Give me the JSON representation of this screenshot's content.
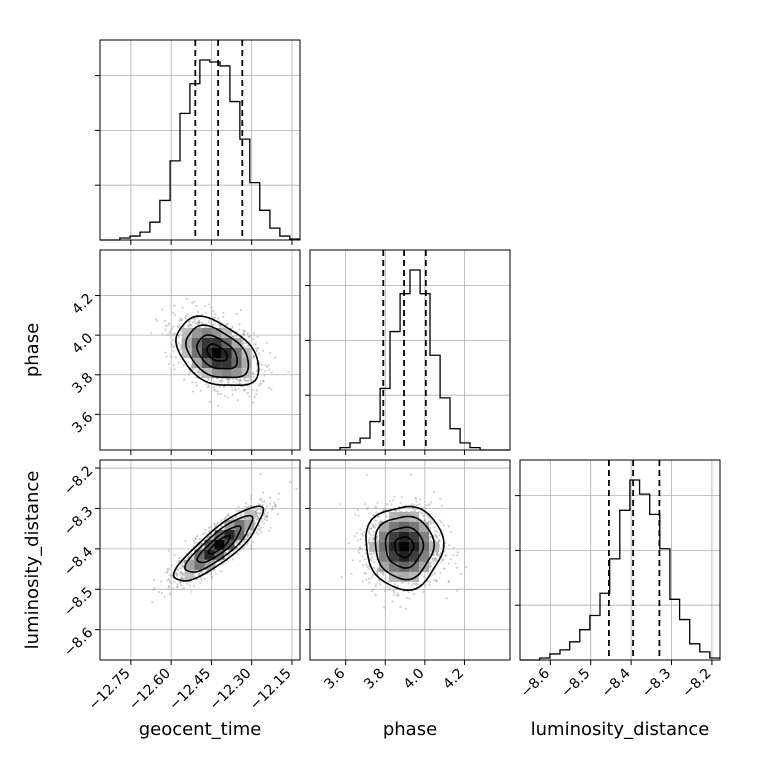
{
  "chart_data": {
    "type": "corner",
    "parameters": [
      "geocent_time",
      "phase",
      "luminosity_distance"
    ],
    "axis_labels": {
      "x": [
        "geocent_time",
        "phase",
        "luminosity_distance"
      ],
      "y": [
        "",
        "phase",
        "luminosity_distance"
      ]
    },
    "ranges": {
      "geocent_time": [
        -12.865,
        -12.12
      ],
      "phase": [
        3.42,
        4.43
      ],
      "luminosity_distance": [
        -8.675,
        -8.18
      ]
    },
    "ticks": {
      "geocent_time": {
        "values": [
          -12.75,
          -12.6,
          -12.45,
          -12.3,
          -12.15
        ],
        "labels": [
          "−12.75",
          "−12.60",
          "−12.45",
          "−12.30",
          "−12.15"
        ]
      },
      "phase": {
        "values": [
          3.6,
          3.8,
          4.0,
          4.2
        ],
        "labels": [
          "3.6",
          "3.8",
          "4.0",
          "4.2"
        ]
      },
      "luminosity_distance": {
        "values": [
          -8.6,
          -8.5,
          -8.4,
          -8.3,
          -8.2
        ],
        "labels": [
          "−8.6",
          "−8.5",
          "−8.4",
          "−8.3",
          "−8.2"
        ]
      }
    },
    "quantiles": {
      "geocent_time": [
        -12.51,
        -12.425,
        -12.335
      ],
      "phase": [
        3.79,
        3.895,
        4.005
      ],
      "luminosity_distance": [
        -8.455,
        -8.395,
        -8.33
      ]
    },
    "histograms": {
      "geocent_time": {
        "bin_edges": [
          -12.865,
          -12.828,
          -12.791,
          -12.753,
          -12.716,
          -12.679,
          -12.642,
          -12.604,
          -12.567,
          -12.53,
          -12.493,
          -12.456,
          -12.418,
          -12.381,
          -12.344,
          -12.307,
          -12.27,
          -12.232,
          -12.195,
          -12.158,
          -12.12
        ],
        "counts": [
          0,
          0,
          2,
          4,
          8,
          18,
          40,
          80,
          128,
          158,
          182,
          180,
          176,
          140,
          102,
          58,
          30,
          12,
          4,
          1
        ]
      },
      "phase": {
        "bin_edges": [
          3.42,
          3.471,
          3.521,
          3.572,
          3.622,
          3.673,
          3.723,
          3.774,
          3.824,
          3.875,
          3.925,
          3.976,
          4.026,
          4.077,
          4.127,
          4.178,
          4.228,
          4.279,
          4.329,
          4.38,
          4.43
        ],
        "counts": [
          0,
          0,
          0,
          2,
          6,
          10,
          24,
          52,
          100,
          132,
          152,
          132,
          80,
          44,
          18,
          6,
          2,
          0,
          0,
          0
        ]
      },
      "luminosity_distance": {
        "bin_edges": [
          -8.675,
          -8.65,
          -8.626,
          -8.601,
          -8.576,
          -8.552,
          -8.527,
          -8.502,
          -8.477,
          -8.453,
          -8.428,
          -8.403,
          -8.379,
          -8.354,
          -8.329,
          -8.304,
          -8.28,
          -8.255,
          -8.23,
          -8.205,
          -8.18
        ],
        "counts": [
          0,
          0,
          2,
          6,
          10,
          18,
          30,
          44,
          66,
          100,
          148,
          178,
          164,
          144,
          110,
          60,
          40,
          16,
          8,
          2
        ]
      }
    },
    "joint_2d": [
      {
        "x": "geocent_time",
        "y": "phase",
        "center": [
          -12.43,
          3.91
        ],
        "sigma": [
          0.075,
          0.085
        ],
        "correlation": -0.4
      },
      {
        "x": "geocent_time",
        "y": "luminosity_distance",
        "center": [
          -12.42,
          -8.39
        ],
        "sigma": [
          0.08,
          0.045
        ],
        "correlation": 0.85
      },
      {
        "x": "phase",
        "y": "luminosity_distance",
        "center": [
          3.895,
          -8.395
        ],
        "sigma": [
          0.095,
          0.05
        ],
        "correlation": 0.0
      }
    ],
    "grid": true
  }
}
